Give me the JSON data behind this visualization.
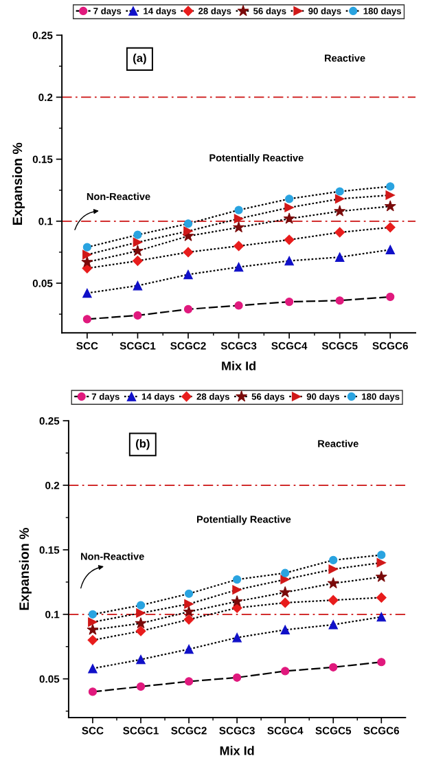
{
  "chart_data": [
    {
      "type": "line",
      "xlabel": "Mix Id",
      "ylabel": "Expansion %",
      "categories": [
        "SCC",
        "SCGC1",
        "SCGC2",
        "SCGC3",
        "SCGC4",
        "SCGC5",
        "SCGC6"
      ],
      "ylim": [
        0.01,
        0.25
      ],
      "yticks": [
        0.05,
        0.1,
        0.15,
        0.2,
        0.25
      ],
      "legend": "top",
      "grid": false,
      "series": [
        {
          "name": "7 days",
          "color": "#e0197d",
          "marker": "circle",
          "line_style": "dashed",
          "values": [
            0.021,
            0.024,
            0.029,
            0.032,
            0.035,
            0.036,
            0.039
          ]
        },
        {
          "name": "14 days",
          "color": "#1010c8",
          "marker": "triangle",
          "line_style": "dotted",
          "values": [
            0.042,
            0.048,
            0.057,
            0.063,
            0.068,
            0.071,
            0.077
          ]
        },
        {
          "name": "28 days",
          "color": "#e81c1c",
          "marker": "diamond",
          "line_style": "dotted",
          "values": [
            0.062,
            0.068,
            0.075,
            0.08,
            0.085,
            0.091,
            0.095
          ]
        },
        {
          "name": "56 days",
          "color": "#7a0a0a",
          "marker": "star",
          "line_style": "dotted",
          "values": [
            0.067,
            0.076,
            0.088,
            0.095,
            0.102,
            0.108,
            0.112
          ]
        },
        {
          "name": "90 days",
          "color": "#d01818",
          "marker": "triangle",
          "line_style": "dotted",
          "values": [
            0.073,
            0.083,
            0.092,
            0.102,
            0.111,
            0.118,
            0.121
          ]
        },
        {
          "name": "180 days",
          "color": "#29a3e0",
          "marker": "circle",
          "line_style": "dotted",
          "values": [
            0.079,
            0.089,
            0.098,
            0.109,
            0.118,
            0.124,
            0.128
          ]
        }
      ],
      "ref_lines": [
        {
          "axis": "y",
          "value": 0.2,
          "color": "#cc1111"
        },
        {
          "axis": "y",
          "value": 0.1,
          "color": "#cc1111"
        }
      ],
      "annotations": [
        "(a)",
        "Reactive",
        "Potentially Reactive",
        "Non-Reactive"
      ]
    },
    {
      "type": "line",
      "xlabel": "Mix Id",
      "ylabel": "Expansion %",
      "categories": [
        "SCC",
        "SCGC1",
        "SCGC2",
        "SCGC3",
        "SCGC4",
        "SCGC5",
        "SCGC6"
      ],
      "ylim": [
        0.02,
        0.25
      ],
      "yticks": [
        0.05,
        0.1,
        0.15,
        0.2,
        0.25
      ],
      "legend": "top",
      "grid": false,
      "series": [
        {
          "name": "7 days",
          "color": "#e0197d",
          "marker": "circle",
          "line_style": "dashed",
          "values": [
            0.04,
            0.044,
            0.048,
            0.051,
            0.056,
            0.059,
            0.063
          ]
        },
        {
          "name": "14 days",
          "color": "#1010c8",
          "marker": "triangle",
          "line_style": "dotted",
          "values": [
            0.058,
            0.065,
            0.073,
            0.082,
            0.088,
            0.092,
            0.098
          ]
        },
        {
          "name": "28 days",
          "color": "#e81c1c",
          "marker": "diamond",
          "line_style": "dotted",
          "values": [
            0.08,
            0.087,
            0.096,
            0.105,
            0.109,
            0.111,
            0.113
          ]
        },
        {
          "name": "56 days",
          "color": "#7a0a0a",
          "marker": "star",
          "line_style": "dotted",
          "values": [
            0.088,
            0.093,
            0.102,
            0.11,
            0.117,
            0.124,
            0.129
          ]
        },
        {
          "name": "90 days",
          "color": "#d01818",
          "marker": "triangle",
          "line_style": "dotted",
          "values": [
            0.094,
            0.101,
            0.108,
            0.119,
            0.127,
            0.135,
            0.14
          ]
        },
        {
          "name": "180 days",
          "color": "#29a3e0",
          "marker": "circle",
          "line_style": "dotted",
          "values": [
            0.1,
            0.107,
            0.116,
            0.127,
            0.132,
            0.142,
            0.146
          ]
        }
      ],
      "ref_lines": [
        {
          "axis": "y",
          "value": 0.2,
          "color": "#cc1111"
        },
        {
          "axis": "y",
          "value": 0.1,
          "color": "#cc1111"
        }
      ],
      "annotations": [
        "(b)",
        "Reactive",
        "Potentially Reactive",
        "Non-Reactive"
      ]
    }
  ]
}
